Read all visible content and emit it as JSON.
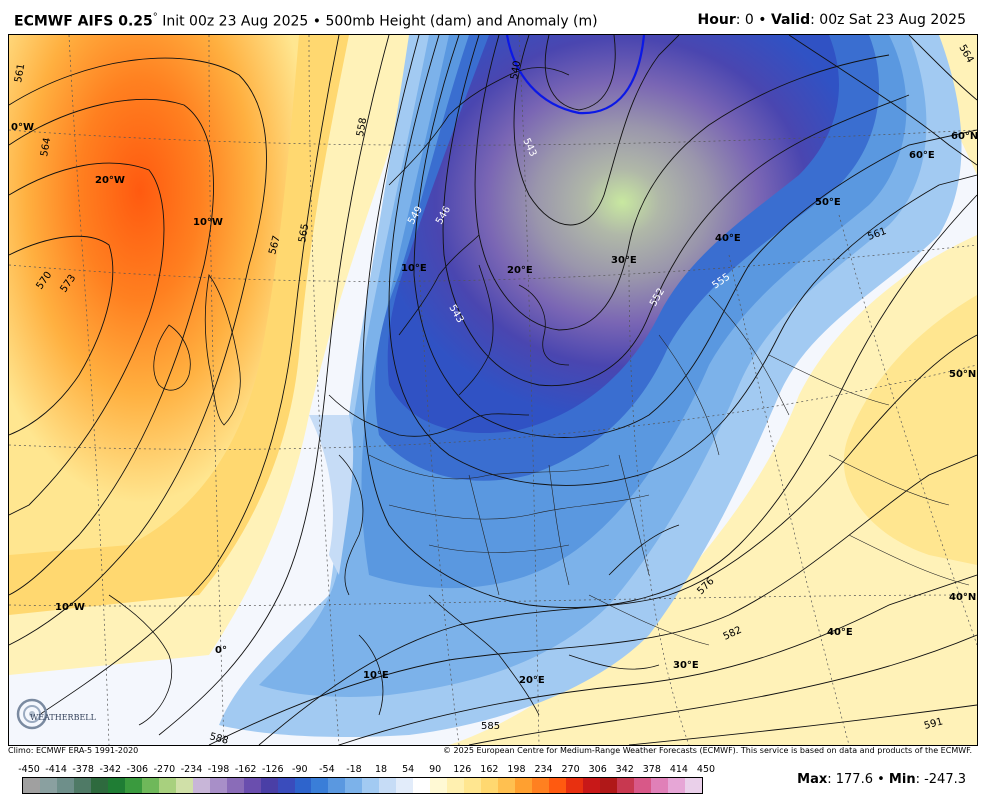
{
  "header": {
    "model": "ECMWF AIFS 0.25",
    "degree": "°",
    "init": " Init 00z 23 Aug 2025 • 500mb Height (dam) and Anomaly (m)",
    "hour_label": "Hour",
    "hour_value": ": 0 • ",
    "valid_label": "Valid",
    "valid_value": ": 00z Sat 23 Aug 2025"
  },
  "map": {
    "lat_labels": [
      "60°N",
      "50°N",
      "40°N"
    ],
    "lon_labels": [
      "0°W",
      "20°W",
      "10°W",
      "0°",
      "10°W",
      "10°E",
      "20°E",
      "30°E",
      "40°E",
      "50°E",
      "60°E",
      "10°E",
      "20°E",
      "30°E",
      "40°E"
    ],
    "contour_labels": [
      "561",
      "564",
      "570",
      "573",
      "558",
      "565",
      "567",
      "549",
      "546",
      "543",
      "552",
      "555",
      "561",
      "564",
      "576",
      "582",
      "585",
      "588",
      "591",
      "540",
      "543"
    ]
  },
  "footer": {
    "climo": "Climo: ECMWF ERA-5 1991-2020",
    "copyright": "© 2025 European Centre for Medium-Range Weather Forecasts (ECMWF). This service is based on data and products of the ECMWF."
  },
  "colorbar": {
    "ticks": [
      "-450",
      "-414",
      "-378",
      "-342",
      "-306",
      "-270",
      "-234",
      "-198",
      "-162",
      "-126",
      "-90",
      "-54",
      "-18",
      "18",
      "54",
      "90",
      "126",
      "162",
      "198",
      "234",
      "270",
      "306",
      "342",
      "378",
      "414",
      "450"
    ],
    "colors": [
      "#a0a0a0",
      "#8aa0a0",
      "#6e8f8a",
      "#4f7a66",
      "#2e6a3e",
      "#1f7d34",
      "#3a9a3e",
      "#6fb85a",
      "#a8d07e",
      "#d0e0a8",
      "#c8b6d8",
      "#a88fc8",
      "#8a6cb8",
      "#6a4eae",
      "#4a3fa6",
      "#3a4cbc",
      "#2e64cc",
      "#3a7ed8",
      "#5a98e0",
      "#7cb2ea",
      "#a2caf2",
      "#c6dcf6",
      "#e2ecfa",
      "#ffffff",
      "#fff9d4",
      "#fff0b0",
      "#ffe690",
      "#ffd870",
      "#ffc050",
      "#ffa030",
      "#ff8020",
      "#ff5a10",
      "#e83010",
      "#c81818",
      "#b01818",
      "#c83850",
      "#d85888",
      "#e080b8",
      "#e6a6d6",
      "#ead0ea"
    ],
    "max_label": "Max",
    "max_value": ": 177.6 • ",
    "min_label": "Min",
    "min_value": ": -247.3"
  },
  "logo": {
    "text": "WEATHERBELL"
  }
}
